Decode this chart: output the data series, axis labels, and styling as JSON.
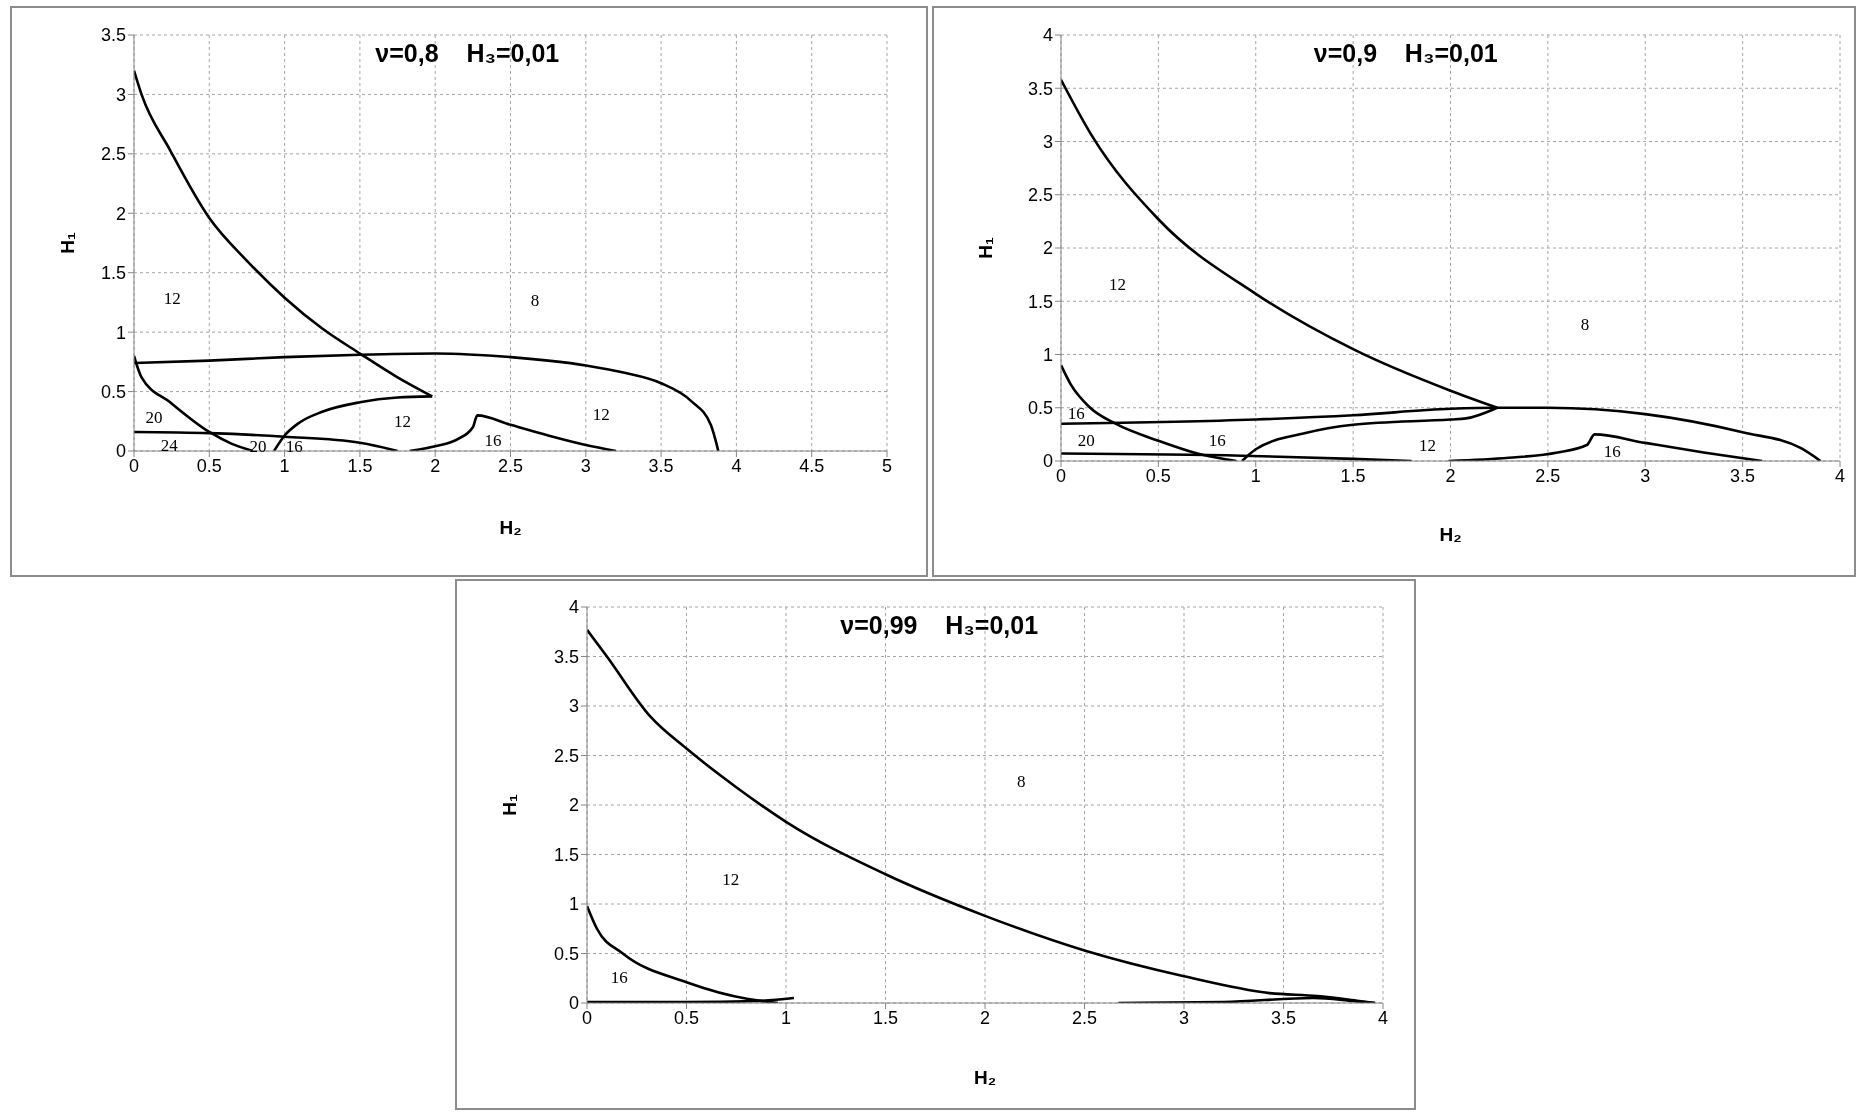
{
  "chart_data": [
    {
      "type": "line",
      "title": "ν=0,8    H₃=0,01",
      "xlabel": "H₂",
      "ylabel": "H₁",
      "xlim": [
        0,
        5
      ],
      "xticks": [
        0,
        0.5,
        1,
        1.5,
        2,
        2.5,
        3,
        3.5,
        4,
        4.5,
        5
      ],
      "ylim": [
        0,
        3.5
      ],
      "yticks": [
        0,
        0.5,
        1,
        1.5,
        2,
        2.5,
        3,
        3.5
      ],
      "grid": true,
      "marker": "none",
      "line_style": "solid",
      "series": [
        {
          "color": "#000000",
          "x": [
            0,
            0.05,
            0.24,
            0.5,
            0.75,
            1,
            1.25,
            1.5,
            1.75,
            1.98
          ],
          "values": [
            3.2,
            3.0,
            2.53,
            1.96,
            1.6,
            1.29,
            1.03,
            0.82,
            0.62,
            0.46
          ]
        },
        {
          "color": "#000000",
          "x": [
            0,
            0.5,
            1,
            1.5,
            2,
            2.5,
            3,
            3.25,
            3.5,
            3.7,
            3.83,
            3.88
          ],
          "values": [
            0.74,
            0.76,
            0.79,
            0.81,
            0.82,
            0.79,
            0.72,
            0.66,
            0.57,
            0.42,
            0.22,
            0
          ]
        },
        {
          "color": "#000000",
          "x": [
            0,
            0.05,
            0.24,
            0.5,
            0.65,
            0.79
          ],
          "values": [
            0.8,
            0.62,
            0.41,
            0.16,
            0.06,
            0
          ]
        },
        {
          "color": "#000000",
          "x": [
            0,
            0.5,
            1,
            1.5,
            1.75
          ],
          "values": [
            0.16,
            0.15,
            0.12,
            0.07,
            0
          ]
        },
        {
          "color": "#000000",
          "x": [
            0.93,
            1,
            1.1,
            1.25,
            1.5,
            1.75,
            1.98
          ],
          "values": [
            0,
            0.13,
            0.24,
            0.33,
            0.41,
            0.45,
            0.46
          ]
        },
        {
          "color": "#000000",
          "x": [
            1.83,
            2,
            2.15,
            2.25,
            2.28,
            2.5,
            2.75,
            3,
            3.2
          ],
          "values": [
            0,
            0.04,
            0.1,
            0.2,
            0.3,
            0.22,
            0.13,
            0.05,
            0
          ]
        }
      ],
      "annotations": [
        "12",
        "8",
        "20",
        "24",
        "20",
        "16",
        "12",
        "16",
        "12"
      ]
    },
    {
      "type": "line",
      "title": "ν=0,9    H₃=0,01",
      "xlabel": "H₂",
      "ylabel": "H₁",
      "xlim": [
        0,
        4
      ],
      "xticks": [
        0,
        0.5,
        1,
        1.5,
        2,
        2.5,
        3,
        3.5,
        4
      ],
      "ylim": [
        0,
        4
      ],
      "yticks": [
        0,
        0.5,
        1,
        1.5,
        2,
        2.5,
        3,
        3.5,
        4
      ],
      "grid": true,
      "marker": "none",
      "line_style": "solid",
      "series": [
        {
          "color": "#000000",
          "x": [
            0,
            0.16,
            0.5,
            1,
            1.5,
            2,
            2.24
          ],
          "values": [
            3.58,
            3.05,
            2.27,
            1.57,
            1.05,
            0.66,
            0.5
          ]
        },
        {
          "color": "#000000",
          "x": [
            0,
            1,
            1.5,
            2,
            2.24,
            2.5,
            3,
            3.5,
            3.8,
            3.9
          ],
          "values": [
            0.35,
            0.39,
            0.43,
            0.49,
            0.5,
            0.5,
            0.44,
            0.27,
            0.12,
            0
          ]
        },
        {
          "color": "#000000",
          "x": [
            0.93,
            1,
            1.25,
            1.5,
            2,
            2.08,
            2.24
          ],
          "values": [
            0,
            0.11,
            0.26,
            0.34,
            0.39,
            0.4,
            0.5
          ]
        },
        {
          "color": "#000000",
          "x": [
            0,
            0.05,
            0.15,
            0.28,
            0.5,
            0.7,
            0.9
          ],
          "values": [
            0.9,
            0.72,
            0.5,
            0.35,
            0.19,
            0.07,
            0
          ]
        },
        {
          "color": "#000000",
          "x": [
            0,
            0.93,
            1.5,
            1.8
          ],
          "values": [
            0.07,
            0.05,
            0.02,
            0
          ]
        },
        {
          "color": "#000000",
          "x": [
            1.99,
            2.3,
            2.55,
            2.7,
            2.74,
            3,
            3.3,
            3.6
          ],
          "values": [
            0,
            0.03,
            0.08,
            0.15,
            0.25,
            0.17,
            0.08,
            0
          ]
        }
      ],
      "annotations": [
        "12",
        "8",
        "16",
        "20",
        "16",
        "12",
        "16"
      ]
    },
    {
      "type": "line",
      "title": "ν=0,99    H₃=0,01",
      "xlabel": "H₂",
      "ylabel": "H₁",
      "xlim": [
        0,
        4
      ],
      "xticks": [
        0,
        0.5,
        1,
        1.5,
        2,
        2.5,
        3,
        3.5,
        4
      ],
      "ylim": [
        0,
        4
      ],
      "yticks": [
        0,
        0.5,
        1,
        1.5,
        2,
        2.5,
        3,
        3.5,
        4
      ],
      "grid": true,
      "marker": "none",
      "line_style": "solid",
      "series": [
        {
          "color": "#000000",
          "x": [
            0,
            0.1,
            0.32,
            0.5,
            0.75,
            1,
            1.5,
            2,
            2.5,
            3,
            3.43,
            3.67,
            3.88,
            3.96
          ],
          "values": [
            3.77,
            3.5,
            2.89,
            2.57,
            2.18,
            1.83,
            1.3,
            0.88,
            0.53,
            0.27,
            0.1,
            0.07,
            0.02,
            0
          ]
        },
        {
          "color": "#000000",
          "x": [
            0,
            0.05,
            0.18,
            0.5,
            0.81,
            0.96
          ],
          "values": [
            0.98,
            0.75,
            0.5,
            0.21,
            0.04,
            0
          ]
        },
        {
          "color": "#000000",
          "x": [
            0,
            0.5,
            0.85,
            1.04
          ],
          "values": [
            0.01,
            0.01,
            0.02,
            0.05
          ]
        },
        {
          "color": "#000000",
          "x": [
            2.67,
            3.2,
            3.65,
            3.85,
            3.96
          ],
          "values": [
            0,
            0.01,
            0.05,
            0.02,
            0
          ]
        }
      ],
      "annotations": [
        "8",
        "12",
        "16"
      ]
    }
  ]
}
